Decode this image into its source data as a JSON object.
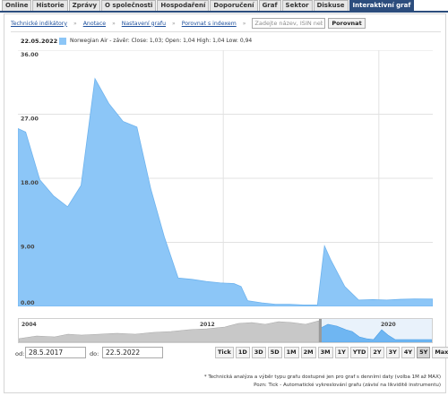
{
  "tabs": [
    {
      "label": "Online",
      "active": false
    },
    {
      "label": "Historie",
      "active": false
    },
    {
      "label": "Zprávy",
      "active": false
    },
    {
      "label": "O společnosti",
      "active": false
    },
    {
      "label": "Hospodaření",
      "active": false
    },
    {
      "label": "Doporučení",
      "active": false
    },
    {
      "label": "Graf",
      "active": false
    },
    {
      "label": "Sektor",
      "active": false
    },
    {
      "label": "Diskuse",
      "active": false
    },
    {
      "label": "Interaktivní graf",
      "active": true
    }
  ],
  "toolbar": {
    "technical": "Technické indikátory",
    "annotations": "Anotace",
    "settings": "Nastavení grafu",
    "compare_index": "Porovnat s indexem",
    "search_placeholder": "Zadejte název, ISIN neb",
    "compare_button": "Porovnat",
    "chevron": "»"
  },
  "info": {
    "date": "22.05.2022",
    "legend": "Norwegian Air - závěr: Close: 1,03; Open: 1,04 High: 1,04 Low: 0,94"
  },
  "chart_data": {
    "type": "area",
    "series": [
      {
        "name": "Norwegian Air",
        "color": "#8cc6f7",
        "x": [
          "2017-05-28",
          "2017-07",
          "2017-09",
          "2017-11",
          "2018-01",
          "2018-03",
          "2018-05",
          "2018-07",
          "2018-09",
          "2018-11",
          "2019-01",
          "2019-03",
          "2019-05",
          "2019-07",
          "2019-09",
          "2019-11",
          "2020-01",
          "2020-02",
          "2020-03",
          "2020-05",
          "2020-07",
          "2020-09",
          "2020-11",
          "2021-01",
          "2021-02",
          "2021-03",
          "2021-05",
          "2021-07",
          "2021-09",
          "2021-11",
          "2022-01",
          "2022-03",
          "2022-05-22"
        ],
        "values": [
          25.0,
          24.5,
          17.8,
          15.5,
          14.0,
          17.0,
          32.0,
          28.5,
          26.0,
          25.2,
          16.5,
          9.8,
          4.0,
          3.8,
          3.5,
          3.3,
          3.2,
          2.8,
          0.8,
          0.5,
          0.3,
          0.3,
          0.2,
          0.2,
          8.5,
          6.5,
          2.8,
          0.9,
          0.95,
          0.9,
          1.0,
          1.05,
          1.03
        ]
      }
    ],
    "yticks": [
      "36.00",
      "27.00",
      "18.00",
      "9.00",
      "0.00"
    ],
    "ylim": [
      0,
      36
    ],
    "xlim": [
      "2017-05-28",
      "2022-05-22"
    ],
    "grid": true
  },
  "navigator": {
    "labels": [
      "2004",
      "2012",
      "2020"
    ]
  },
  "controls": {
    "from_label": "od:",
    "from_value": "28.5.2017",
    "to_label": "do:",
    "to_value": "22.5.2022",
    "ranges": [
      {
        "label": "Tick",
        "active": false
      },
      {
        "label": "1D",
        "active": false
      },
      {
        "label": "3D",
        "active": false
      },
      {
        "label": "5D",
        "active": false
      },
      {
        "label": "1M",
        "active": false
      },
      {
        "label": "2M",
        "active": false
      },
      {
        "label": "3M",
        "active": false
      },
      {
        "label": "1Y",
        "active": false
      },
      {
        "label": "YTD",
        "active": false
      },
      {
        "label": "2Y",
        "active": false
      },
      {
        "label": "3Y",
        "active": false
      },
      {
        "label": "4Y",
        "active": false
      },
      {
        "label": "5Y",
        "active": true
      },
      {
        "label": "Max",
        "active": false
      }
    ]
  },
  "footnotes": {
    "line1": "* Technická analýza a výběr typu grafu dostupné jen pro graf s denními daty (volba 1M až MAX)",
    "line2": "Pozn: Tick - Automatické vykreslování grafu (závisí na likviditě instrumentu)"
  }
}
